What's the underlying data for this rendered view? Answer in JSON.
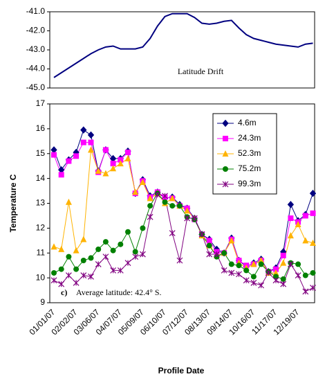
{
  "chart_data": [
    {
      "type": "line",
      "annotation": "Latitude Drift",
      "values": [
        -44.45,
        -44.2,
        -43.95,
        -43.7,
        -43.45,
        -43.2,
        -43.0,
        -42.85,
        -42.8,
        -42.95,
        -42.95,
        -42.95,
        -42.85,
        -42.4,
        -41.75,
        -41.25,
        -41.1,
        -41.1,
        -41.1,
        -41.3,
        -41.6,
        -41.65,
        -41.6,
        -41.5,
        -41.45,
        -41.85,
        -42.2,
        -42.4,
        -42.5,
        -42.6,
        -42.7,
        -42.75,
        -42.8,
        -42.85,
        -42.7,
        -42.65
      ],
      "color": "#000080",
      "ylim": [
        -45,
        -41
      ],
      "yticks": [
        {
          "value": -45,
          "label": "-45.0"
        },
        {
          "value": -44,
          "label": "-44.0"
        },
        {
          "value": -43,
          "label": "-43.0"
        },
        {
          "value": -42,
          "label": "-42.0"
        },
        {
          "value": -41,
          "label": "-41.0"
        }
      ]
    },
    {
      "type": "line",
      "y_label": "Temperature C",
      "x_label": "Profile Date",
      "annotation_prefix": "c)",
      "annotation": "Average latitude: 42.4° S.",
      "legend": "upper right",
      "categories": [
        "01/01/07",
        null,
        null,
        "02/02/07",
        null,
        null,
        "03/06/07",
        null,
        null,
        "04/07/07",
        null,
        null,
        "05/09/07",
        null,
        null,
        "06/10/07",
        null,
        null,
        "07/12/07",
        null,
        null,
        "08/13/07",
        null,
        null,
        "09/14/07",
        null,
        null,
        "10/16/07",
        null,
        null,
        "11/17/07",
        null,
        null,
        "12/19/07",
        null,
        null
      ],
      "series": [
        {
          "name": "4.6m",
          "color": "#000080",
          "marker": "diamond",
          "values": [
            15.15,
            14.35,
            14.75,
            15.05,
            15.95,
            15.75,
            14.3,
            15.15,
            14.8,
            14.8,
            15.1,
            13.4,
            13.95,
            13.3,
            13.45,
            13.2,
            13.25,
            12.95,
            12.8,
            12.4,
            11.75,
            11.55,
            11.15,
            11.0,
            11.6,
            10.7,
            10.45,
            10.6,
            10.75,
            10.25,
            10.4,
            11.05,
            12.95,
            12.3,
            12.55,
            13.4
          ]
        },
        {
          "name": "24.3m",
          "color": "#ff00ff",
          "marker": "square",
          "values": [
            14.95,
            14.15,
            14.7,
            14.9,
            15.45,
            15.45,
            14.25,
            15.15,
            14.6,
            14.75,
            15.05,
            13.4,
            13.9,
            13.25,
            13.45,
            13.25,
            13.2,
            12.9,
            12.8,
            12.35,
            11.75,
            11.5,
            11.05,
            11.0,
            11.55,
            10.7,
            10.5,
            10.55,
            10.7,
            10.25,
            10.35,
            10.9,
            12.4,
            12.25,
            12.5,
            12.6
          ]
        },
        {
          "name": "52.3m",
          "color": "#ffb300",
          "marker": "triangle",
          "values": [
            11.25,
            11.15,
            13.05,
            11.1,
            11.55,
            15.15,
            14.3,
            14.2,
            14.4,
            14.6,
            14.8,
            13.45,
            13.85,
            13.2,
            13.4,
            13.0,
            13.2,
            12.9,
            12.7,
            12.4,
            11.7,
            11.3,
            10.9,
            11.0,
            11.5,
            10.6,
            10.4,
            10.55,
            10.7,
            10.2,
            10.2,
            10.6,
            11.7,
            12.15,
            11.5,
            11.4
          ]
        },
        {
          "name": "75.2m",
          "color": "#008000",
          "marker": "circle",
          "values": [
            10.2,
            10.35,
            10.85,
            10.35,
            10.7,
            10.8,
            11.15,
            11.45,
            11.1,
            11.35,
            11.85,
            11.05,
            12.0,
            12.9,
            13.4,
            13.05,
            12.9,
            12.9,
            12.45,
            12.35,
            11.75,
            11.3,
            10.85,
            11.0,
            10.55,
            10.5,
            10.3,
            10.05,
            10.55,
            10.25,
            10.05,
            9.95,
            10.6,
            10.55,
            10.1,
            10.2
          ]
        },
        {
          "name": "99.3m",
          "color": "#800080",
          "marker": "asterisk",
          "values": [
            9.9,
            9.75,
            10.1,
            9.8,
            10.1,
            10.05,
            10.55,
            10.85,
            10.3,
            10.3,
            10.6,
            10.85,
            10.95,
            12.45,
            13.35,
            13.3,
            11.8,
            10.7,
            12.4,
            12.4,
            11.75,
            10.95,
            10.95,
            10.3,
            10.2,
            10.15,
            9.9,
            9.8,
            9.7,
            10.2,
            9.9,
            9.75,
            10.55,
            10.1,
            9.45,
            9.6
          ]
        }
      ],
      "ylim": [
        9,
        17
      ],
      "yticks": [
        9,
        10,
        11,
        12,
        13,
        14,
        15,
        16,
        17
      ]
    }
  ]
}
